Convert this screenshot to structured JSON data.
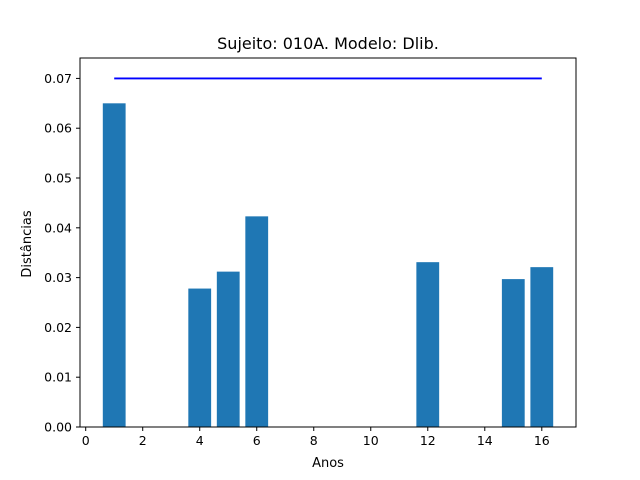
{
  "chart_data": {
    "type": "bar",
    "title": "Sujeito: 010A. Modelo: Dlib.",
    "xlabel": "Anos",
    "ylabel": "Distâncias",
    "xlim": [
      -0.2,
      17.2
    ],
    "ylim": [
      0,
      0.0741
    ],
    "x_ticks": [
      0,
      2,
      4,
      6,
      8,
      10,
      12,
      14,
      16
    ],
    "x_tick_labels": [
      "0",
      "2",
      "4",
      "6",
      "8",
      "10",
      "12",
      "14",
      "16"
    ],
    "y_ticks": [
      0,
      0.01,
      0.02,
      0.03,
      0.04,
      0.05,
      0.06,
      0.07
    ],
    "y_tick_labels": [
      "0.00",
      "0.01",
      "0.02",
      "0.03",
      "0.04",
      "0.05",
      "0.06",
      "0.07"
    ],
    "bar_width": 0.8,
    "bar_color": "#1f77b4",
    "x": [
      1,
      4,
      5,
      6,
      12,
      15,
      16
    ],
    "values": [
      0.065,
      0.0278,
      0.0312,
      0.0423,
      0.0331,
      0.0297,
      0.0321
    ],
    "threshold_line": {
      "x": [
        1,
        16
      ],
      "y": 0.07,
      "color": "#0000ff"
    },
    "grid": false
  }
}
